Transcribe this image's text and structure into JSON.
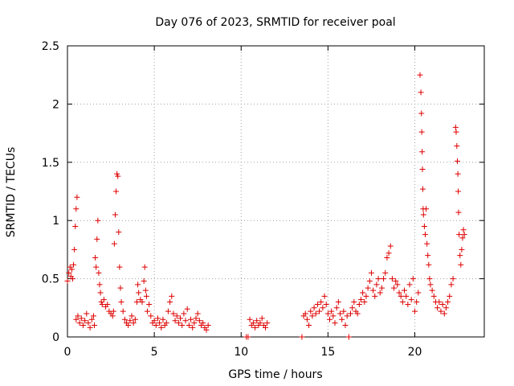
{
  "chart_data": {
    "type": "scatter",
    "title": "Day 076 of 2023, SRMTID for receiver poal",
    "xlabel": "GPS time / hours",
    "ylabel": "SRMTID / TECUs",
    "xlim": [
      0,
      24
    ],
    "ylim": [
      0,
      2.5
    ],
    "grid": true,
    "x_ticks": [
      0,
      5,
      10,
      15,
      20
    ],
    "x_tick_labels": [
      "0",
      "5",
      "10",
      "15",
      "20"
    ],
    "y_ticks": [
      0,
      0.5,
      1,
      1.5,
      2,
      2.5
    ],
    "y_tick_labels": [
      "0",
      "0.5",
      "1",
      "1.5",
      "2",
      "2.5"
    ],
    "marker": "+",
    "color": "#dd0000",
    "series": [
      {
        "name": "SRMTID",
        "points": [
          [
            0.0,
            0.48
          ],
          [
            0.08,
            0.55
          ],
          [
            0.15,
            0.6
          ],
          [
            0.2,
            0.52
          ],
          [
            0.25,
            0.58
          ],
          [
            0.3,
            0.5
          ],
          [
            0.35,
            0.62
          ],
          [
            0.4,
            0.75
          ],
          [
            0.45,
            0.95
          ],
          [
            0.5,
            1.1
          ],
          [
            0.55,
            1.2
          ],
          [
            0.5,
            0.15
          ],
          [
            0.6,
            0.18
          ],
          [
            0.7,
            0.12
          ],
          [
            0.8,
            0.16
          ],
          [
            0.9,
            0.1
          ],
          [
            1.0,
            0.14
          ],
          [
            1.1,
            0.2
          ],
          [
            1.2,
            0.12
          ],
          [
            1.3,
            0.08
          ],
          [
            1.4,
            0.15
          ],
          [
            1.5,
            0.18
          ],
          [
            1.55,
            0.1
          ],
          [
            1.6,
            0.68
          ],
          [
            1.65,
            0.6
          ],
          [
            1.7,
            0.84
          ],
          [
            1.75,
            1.0
          ],
          [
            1.8,
            0.55
          ],
          [
            1.85,
            0.45
          ],
          [
            1.9,
            0.38
          ],
          [
            1.95,
            0.3
          ],
          [
            2.0,
            0.28
          ],
          [
            2.1,
            0.32
          ],
          [
            2.2,
            0.26
          ],
          [
            2.3,
            0.28
          ],
          [
            2.4,
            0.22
          ],
          [
            2.5,
            0.2
          ],
          [
            2.6,
            0.18
          ],
          [
            2.65,
            0.22
          ],
          [
            2.7,
            0.8
          ],
          [
            2.75,
            1.05
          ],
          [
            2.8,
            1.25
          ],
          [
            2.85,
            1.4
          ],
          [
            2.9,
            1.38
          ],
          [
            2.95,
            0.9
          ],
          [
            3.0,
            0.6
          ],
          [
            3.05,
            0.42
          ],
          [
            3.1,
            0.3
          ],
          [
            3.2,
            0.22
          ],
          [
            3.3,
            0.15
          ],
          [
            3.4,
            0.12
          ],
          [
            3.5,
            0.1
          ],
          [
            3.6,
            0.14
          ],
          [
            3.7,
            0.18
          ],
          [
            3.8,
            0.12
          ],
          [
            3.9,
            0.15
          ],
          [
            4.0,
            0.3
          ],
          [
            4.05,
            0.45
          ],
          [
            4.1,
            0.38
          ],
          [
            4.2,
            0.32
          ],
          [
            4.3,
            0.3
          ],
          [
            4.4,
            0.48
          ],
          [
            4.45,
            0.6
          ],
          [
            4.5,
            0.4
          ],
          [
            4.55,
            0.35
          ],
          [
            4.6,
            0.22
          ],
          [
            4.7,
            0.28
          ],
          [
            4.8,
            0.18
          ],
          [
            4.9,
            0.12
          ],
          [
            5.0,
            0.14
          ],
          [
            5.1,
            0.1
          ],
          [
            5.2,
            0.16
          ],
          [
            5.3,
            0.12
          ],
          [
            5.4,
            0.08
          ],
          [
            5.5,
            0.15
          ],
          [
            5.6,
            0.1
          ],
          [
            5.7,
            0.12
          ],
          [
            5.8,
            0.22
          ],
          [
            5.9,
            0.3
          ],
          [
            6.0,
            0.35
          ],
          [
            6.1,
            0.2
          ],
          [
            6.2,
            0.14
          ],
          [
            6.3,
            0.18
          ],
          [
            6.4,
            0.12
          ],
          [
            6.5,
            0.16
          ],
          [
            6.6,
            0.1
          ],
          [
            6.7,
            0.2
          ],
          [
            6.8,
            0.14
          ],
          [
            6.9,
            0.24
          ],
          [
            7.0,
            0.1
          ],
          [
            7.1,
            0.15
          ],
          [
            7.2,
            0.08
          ],
          [
            7.3,
            0.12
          ],
          [
            7.4,
            0.16
          ],
          [
            7.5,
            0.2
          ],
          [
            7.6,
            0.14
          ],
          [
            7.7,
            0.1
          ],
          [
            7.8,
            0.12
          ],
          [
            7.9,
            0.08
          ],
          [
            8.0,
            0.06
          ],
          [
            8.1,
            0.1
          ],
          [
            10.3,
            0.0
          ],
          [
            10.4,
            0.0
          ],
          [
            10.5,
            0.15
          ],
          [
            10.6,
            0.1
          ],
          [
            10.7,
            0.12
          ],
          [
            10.8,
            0.08
          ],
          [
            10.9,
            0.14
          ],
          [
            11.0,
            0.1
          ],
          [
            11.1,
            0.12
          ],
          [
            11.2,
            0.16
          ],
          [
            11.3,
            0.1
          ],
          [
            11.4,
            0.08
          ],
          [
            11.5,
            0.12
          ],
          [
            13.5,
            0.0
          ],
          [
            13.6,
            0.18
          ],
          [
            13.7,
            0.2
          ],
          [
            13.8,
            0.15
          ],
          [
            13.9,
            0.1
          ],
          [
            14.0,
            0.22
          ],
          [
            14.1,
            0.18
          ],
          [
            14.2,
            0.25
          ],
          [
            14.3,
            0.2
          ],
          [
            14.4,
            0.28
          ],
          [
            14.5,
            0.22
          ],
          [
            14.6,
            0.3
          ],
          [
            14.7,
            0.25
          ],
          [
            14.8,
            0.35
          ],
          [
            14.9,
            0.28
          ],
          [
            15.0,
            0.2
          ],
          [
            15.1,
            0.15
          ],
          [
            15.2,
            0.22
          ],
          [
            15.3,
            0.18
          ],
          [
            15.4,
            0.12
          ],
          [
            15.5,
            0.25
          ],
          [
            15.6,
            0.3
          ],
          [
            15.7,
            0.2
          ],
          [
            15.8,
            0.15
          ],
          [
            15.9,
            0.22
          ],
          [
            16.0,
            0.1
          ],
          [
            16.1,
            0.18
          ],
          [
            16.2,
            0.0
          ],
          [
            16.3,
            0.2
          ],
          [
            16.4,
            0.25
          ],
          [
            16.5,
            0.3
          ],
          [
            16.6,
            0.22
          ],
          [
            16.7,
            0.2
          ],
          [
            16.8,
            0.28
          ],
          [
            16.9,
            0.32
          ],
          [
            17.0,
            0.38
          ],
          [
            17.1,
            0.3
          ],
          [
            17.2,
            0.35
          ],
          [
            17.3,
            0.42
          ],
          [
            17.4,
            0.48
          ],
          [
            17.5,
            0.55
          ],
          [
            17.6,
            0.4
          ],
          [
            17.7,
            0.35
          ],
          [
            17.8,
            0.45
          ],
          [
            17.9,
            0.5
          ],
          [
            18.0,
            0.38
          ],
          [
            18.1,
            0.42
          ],
          [
            18.2,
            0.5
          ],
          [
            18.3,
            0.55
          ],
          [
            18.4,
            0.68
          ],
          [
            18.5,
            0.72
          ],
          [
            18.6,
            0.78
          ],
          [
            18.7,
            0.5
          ],
          [
            18.8,
            0.42
          ],
          [
            18.9,
            0.48
          ],
          [
            19.0,
            0.45
          ],
          [
            19.1,
            0.38
          ],
          [
            19.2,
            0.35
          ],
          [
            19.3,
            0.3
          ],
          [
            19.4,
            0.4
          ],
          [
            19.5,
            0.35
          ],
          [
            19.6,
            0.28
          ],
          [
            19.7,
            0.45
          ],
          [
            19.8,
            0.32
          ],
          [
            19.9,
            0.5
          ],
          [
            20.0,
            0.22
          ],
          [
            20.1,
            0.3
          ],
          [
            20.2,
            0.38
          ],
          [
            20.3,
            2.25
          ],
          [
            20.35,
            2.1
          ],
          [
            20.38,
            1.92
          ],
          [
            20.4,
            1.76
          ],
          [
            20.42,
            1.59
          ],
          [
            20.44,
            1.44
          ],
          [
            20.46,
            1.27
          ],
          [
            20.48,
            1.1
          ],
          [
            20.5,
            1.05
          ],
          [
            20.55,
            0.95
          ],
          [
            20.6,
            0.88
          ],
          [
            20.65,
            1.1
          ],
          [
            20.7,
            0.8
          ],
          [
            20.75,
            0.7
          ],
          [
            20.8,
            0.62
          ],
          [
            20.85,
            0.5
          ],
          [
            20.9,
            0.45
          ],
          [
            21.0,
            0.4
          ],
          [
            21.1,
            0.35
          ],
          [
            21.2,
            0.3
          ],
          [
            21.3,
            0.25
          ],
          [
            21.4,
            0.3
          ],
          [
            21.5,
            0.22
          ],
          [
            21.6,
            0.28
          ],
          [
            21.7,
            0.2
          ],
          [
            21.8,
            0.25
          ],
          [
            21.9,
            0.3
          ],
          [
            22.0,
            0.35
          ],
          [
            22.1,
            0.45
          ],
          [
            22.2,
            0.5
          ],
          [
            22.35,
            1.8
          ],
          [
            22.38,
            1.76
          ],
          [
            22.42,
            1.64
          ],
          [
            22.45,
            1.51
          ],
          [
            22.48,
            1.4
          ],
          [
            22.5,
            1.25
          ],
          [
            22.52,
            1.07
          ],
          [
            22.55,
            0.88
          ],
          [
            22.6,
            0.7
          ],
          [
            22.65,
            0.62
          ],
          [
            22.7,
            0.75
          ],
          [
            22.75,
            0.85
          ],
          [
            22.8,
            0.92
          ],
          [
            22.85,
            0.88
          ]
        ]
      }
    ]
  }
}
